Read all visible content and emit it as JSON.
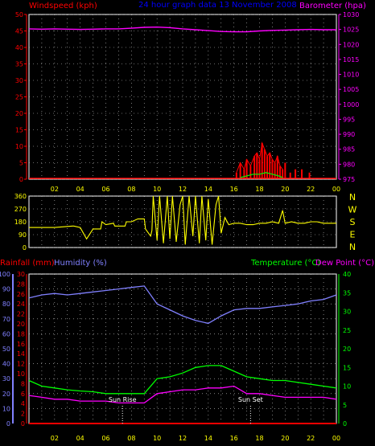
{
  "header": {
    "left_label": "Windspeed (kph)",
    "center_label": "24 hour graph data   13 November 2008",
    "right_label": "Barometer (hpa)"
  },
  "colors": {
    "background": "#000000",
    "frame": "#ffffff",
    "grid": "#cccccc",
    "wind_axis": "#ff0000",
    "baro_axis": "#ff00ff",
    "dir_axis": "#ffff00",
    "rain_axis": "#ff0000",
    "humidity_axis": "#8080ff",
    "temp_axis": "#00ff00",
    "dew_axis": "#ff00ff",
    "center_label": "#0000ff",
    "time_axis": "#ffff00"
  },
  "time_ticks": [
    "02",
    "04",
    "06",
    "08",
    "10",
    "12",
    "14",
    "16",
    "18",
    "20",
    "22",
    "00"
  ],
  "compass_labels": [
    "N",
    "W",
    "S",
    "E",
    "N"
  ],
  "annotations": {
    "sunrise": "Sun Rise",
    "sunset": "Sun Set"
  },
  "chart_data": [
    {
      "type": "line",
      "title": "Windspeed / Barometer",
      "xlabel": "",
      "x_range": [
        0,
        24
      ],
      "y_left": {
        "label": "Windspeed (kph)",
        "range": [
          0,
          50
        ],
        "ticks": [
          0,
          5,
          10,
          15,
          20,
          25,
          30,
          35,
          40,
          45,
          50
        ]
      },
      "y_right": {
        "label": "Barometer (hpa)",
        "range": [
          975,
          1030
        ],
        "ticks": [
          975,
          980,
          985,
          990,
          995,
          1000,
          1005,
          1010,
          1015,
          1020,
          1025,
          1030
        ]
      },
      "grid": true,
      "series": [
        {
          "name": "Barometer (hpa)",
          "axis": "right",
          "color": "#ff00ff",
          "x": [
            0,
            1,
            2,
            3,
            4,
            5,
            6,
            7,
            8,
            9,
            10,
            11,
            12,
            13,
            14,
            15,
            16,
            17,
            18,
            19,
            20,
            21,
            22,
            23,
            24
          ],
          "y": [
            1025.2,
            1025.1,
            1025.2,
            1025.1,
            1025.0,
            1025.1,
            1025.2,
            1025.2,
            1025.4,
            1025.7,
            1025.8,
            1025.6,
            1025.2,
            1024.9,
            1024.6,
            1024.3,
            1024.2,
            1024.2,
            1024.5,
            1024.7,
            1024.8,
            1024.9,
            1025.0,
            1024.9,
            1024.9
          ]
        },
        {
          "name": "Wind gust",
          "axis": "left",
          "color": "#ff0000",
          "x": [
            16.2,
            16.5,
            16.8,
            17.0,
            17.3,
            17.6,
            17.8,
            18.0,
            18.2,
            18.4,
            18.6,
            18.8,
            19.0,
            19.2,
            19.4,
            19.6,
            19.8,
            20.0,
            20.4,
            20.8,
            21.3,
            21.9
          ],
          "y": [
            2,
            5,
            3,
            6,
            4,
            7,
            8,
            6,
            11,
            9,
            7,
            8,
            6,
            5,
            7,
            4,
            3,
            5,
            2,
            3,
            3,
            2
          ]
        },
        {
          "name": "Wind average",
          "axis": "left",
          "color": "#00ff00",
          "x": [
            16.5,
            17.0,
            17.5,
            18.0,
            18.5,
            19.0,
            19.5,
            19.8
          ],
          "y": [
            0.5,
            1,
            1.5,
            1.5,
            2,
            1.5,
            1,
            0.5
          ]
        }
      ]
    },
    {
      "type": "line",
      "title": "Wind direction",
      "x_range": [
        0,
        24
      ],
      "y_left": {
        "range": [
          0,
          360
        ],
        "ticks": [
          0,
          90,
          180,
          270,
          360
        ]
      },
      "grid": true,
      "series": [
        {
          "name": "Wind direction",
          "color": "#ffff00",
          "x": [
            0,
            2,
            3.4,
            3.5,
            4,
            4.5,
            5,
            5.6,
            5.7,
            6,
            6.6,
            6.7,
            7.5,
            7.6,
            8,
            8.5,
            9,
            9.1,
            9.5,
            9.6,
            9.7,
            10,
            10.2,
            10.5,
            10.8,
            11,
            11.2,
            11.5,
            11.8,
            12,
            12.2,
            12.5,
            12.8,
            13,
            13.3,
            13.5,
            13.8,
            14,
            14.3,
            14.6,
            14.8,
            15,
            15.3,
            15.6,
            16,
            16.5,
            17,
            17.5,
            18,
            18.5,
            19,
            19.5,
            19.8,
            20,
            20.5,
            21,
            21.5,
            22,
            22.5,
            23,
            23.5,
            24
          ],
          "y": [
            140,
            140,
            150,
            150,
            140,
            60,
            130,
            130,
            180,
            160,
            170,
            150,
            150,
            180,
            180,
            200,
            200,
            130,
            80,
            120,
            360,
            50,
            360,
            30,
            360,
            60,
            360,
            40,
            300,
            360,
            20,
            360,
            80,
            360,
            30,
            360,
            50,
            340,
            20,
            300,
            360,
            100,
            210,
            160,
            170,
            170,
            160,
            160,
            170,
            170,
            180,
            170,
            260,
            170,
            180,
            170,
            170,
            180,
            180,
            170,
            170,
            170
          ]
        }
      ]
    },
    {
      "type": "line",
      "title": "Rainfall / Humidity / Temperature / Dew Point",
      "x_range": [
        0,
        24
      ],
      "y_left_outer": {
        "label": "Humidity (%)",
        "range": [
          0,
          100
        ],
        "ticks": [
          0,
          10,
          20,
          30,
          40,
          50,
          60,
          70,
          80,
          90,
          100
        ]
      },
      "y_left_inner": {
        "label": "Rainfall (mm)",
        "range": [
          0,
          30
        ],
        "ticks": [
          0,
          2,
          4,
          6,
          8,
          10,
          12,
          14,
          16,
          18,
          20,
          22,
          24,
          26,
          28,
          30
        ]
      },
      "y_right": {
        "label": "Temperature (°C)",
        "range": [
          0,
          40
        ],
        "ticks": [
          0,
          5,
          10,
          15,
          20,
          25,
          30,
          35,
          40
        ]
      },
      "y_right_label_2": "Dew Point (°C)",
      "grid": true,
      "series": [
        {
          "name": "Humidity (%)",
          "axis": "left_outer",
          "color": "#8080ff",
          "x": [
            0,
            1,
            2,
            3,
            4,
            5,
            6,
            7,
            8,
            9,
            10,
            11,
            12,
            13,
            14,
            15,
            16,
            17,
            18,
            19,
            20,
            21,
            22,
            23,
            24
          ],
          "y": [
            84,
            86,
            87,
            86,
            87,
            88,
            89,
            90,
            91,
            92,
            80,
            76,
            72,
            69,
            67,
            72,
            76,
            77,
            77,
            78,
            79,
            80,
            82,
            83,
            86
          ]
        },
        {
          "name": "Temperature (°C)",
          "axis": "right",
          "color": "#00ff00",
          "x": [
            0,
            1,
            2,
            3,
            4,
            5,
            6,
            7,
            8,
            9,
            10,
            11,
            12,
            13,
            14,
            15,
            16,
            17,
            18,
            19,
            20,
            21,
            22,
            23,
            24
          ],
          "y": [
            11.5,
            10,
            9.5,
            9,
            8.7,
            8.5,
            8,
            8,
            8,
            8,
            12,
            12.5,
            13.5,
            15,
            15.5,
            15.5,
            14,
            12.5,
            12,
            11.5,
            11.5,
            11,
            10.5,
            10,
            9.5
          ]
        },
        {
          "name": "Dew Point (°C)",
          "axis": "right",
          "color": "#ff00ff",
          "x": [
            0,
            1,
            2,
            3,
            4,
            5,
            6,
            7,
            8,
            9,
            10,
            11,
            12,
            13,
            14,
            15,
            16,
            17,
            18,
            19,
            20,
            21,
            22,
            23,
            24
          ],
          "y": [
            7.5,
            7,
            6.5,
            6.5,
            6,
            6,
            6,
            5.5,
            5.5,
            5.5,
            8,
            8.5,
            9,
            9,
            9.5,
            9.5,
            10,
            8,
            8,
            7.5,
            7,
            7,
            7,
            7,
            6.5
          ]
        },
        {
          "name": "Rainfall (mm)",
          "axis": "left_inner",
          "color": "#ff0000",
          "x": [
            0,
            24
          ],
          "y": [
            0,
            0
          ]
        }
      ],
      "sunrise_x": 7.3,
      "sunset_x": 17.3
    }
  ]
}
